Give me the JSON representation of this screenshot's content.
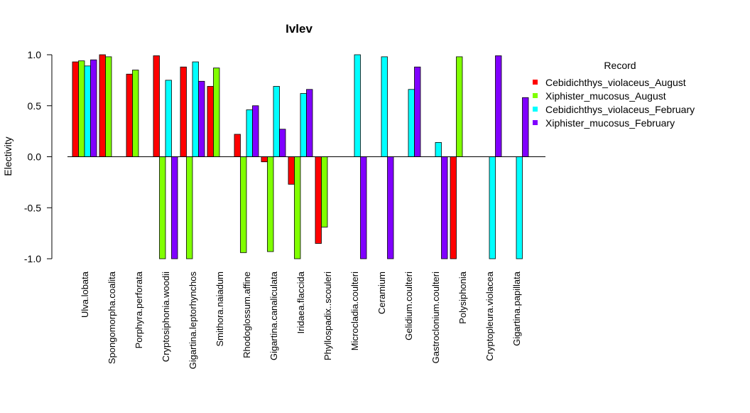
{
  "chart_data": {
    "type": "bar",
    "title": "Ivlev",
    "xlabel": "",
    "ylabel": "Electivity",
    "ylim": [
      -1.0,
      1.0
    ],
    "yticks": [
      "-1.0",
      "-0.5",
      "0.0",
      "0.5",
      "1.0"
    ],
    "legend": {
      "title": "Record",
      "placement": "right"
    },
    "categories": [
      "Ulva.lobata",
      "Spongomorpha.coalita",
      "Porphyra.perforata",
      "Cryptosiphonia.woodii",
      "Gigartina.leptorhynchos",
      "Smithora.naiadum",
      "Rhodoglossum.affine",
      "Gigartina.canaliculata",
      "Iridaea.flaccida",
      "Phyllospadix..scouleri",
      "Microcladia.coulteri",
      "Ceramium",
      "Gelidium.coulteri",
      "Gastroclonium.coulteri",
      "Polysiphonia",
      "Cryptopleura.violacea",
      "Gigartina.papillata"
    ],
    "series": [
      {
        "name": "Cebidichthys_violaceus_August",
        "color": "#ff0000",
        "values": [
          0.93,
          1.0,
          0.81,
          0.99,
          0.88,
          0.69,
          0.22,
          -0.05,
          -0.27,
          -0.85,
          null,
          null,
          null,
          null,
          -1.0,
          null,
          null
        ]
      },
      {
        "name": "Xiphister_mucosus_August",
        "color": "#80ff00",
        "values": [
          0.94,
          0.98,
          0.85,
          -1.0,
          -1.0,
          0.87,
          -0.94,
          -0.93,
          -1.0,
          -0.69,
          null,
          null,
          null,
          null,
          0.98,
          null,
          null
        ]
      },
      {
        "name": "Cebidichthys_violaceus_February",
        "color": "#00ffff",
        "values": [
          0.89,
          null,
          null,
          0.75,
          0.93,
          null,
          0.46,
          0.69,
          0.62,
          null,
          1.0,
          0.98,
          0.66,
          0.14,
          null,
          -1.0,
          -1.0
        ]
      },
      {
        "name": "Xiphister_mucosus_February",
        "color": "#8000ff",
        "values": [
          0.95,
          null,
          null,
          -1.0,
          0.74,
          null,
          0.5,
          0.27,
          0.66,
          null,
          -1.0,
          -1.0,
          0.88,
          -1.0,
          null,
          0.99,
          0.58
        ]
      }
    ]
  }
}
